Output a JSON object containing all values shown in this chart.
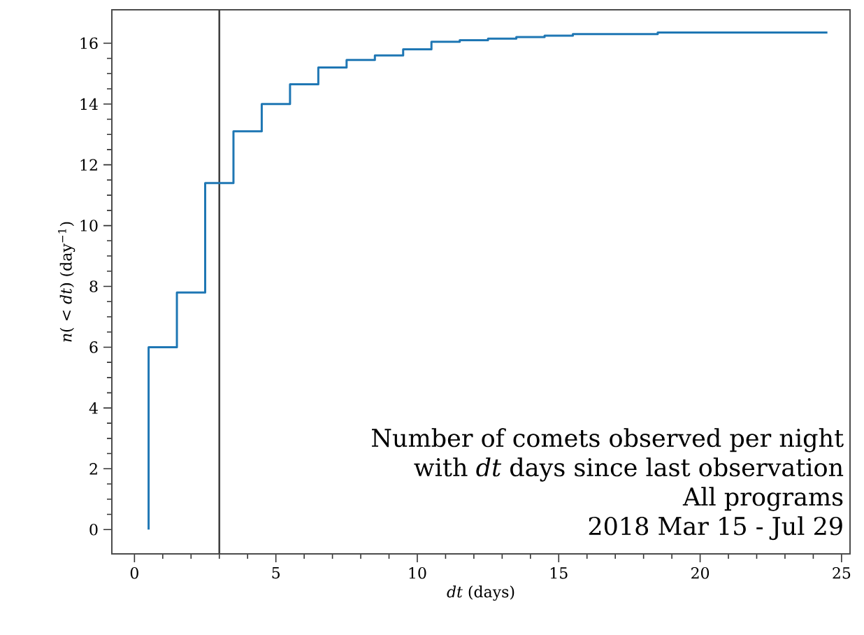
{
  "chart_data": {
    "type": "step",
    "xlabel": "*dt* (days)",
    "ylabel": "*n*( < *dt*) (day$^{−1}$)",
    "x": [
      0.5,
      0.5,
      1.5,
      2.5,
      3.5,
      4.5,
      5.5,
      6.5,
      7.5,
      8.5,
      9.5,
      10.5,
      11.5,
      12.5,
      13.5,
      14.5,
      15.5,
      18.5,
      24.5
    ],
    "series": [
      {
        "color": "#1f77b4",
        "values": [
          0,
          6.0,
          7.8,
          11.4,
          13.1,
          14.0,
          14.65,
          15.2,
          15.45,
          15.6,
          15.8,
          16.05,
          16.1,
          16.15,
          16.2,
          16.25,
          16.3,
          16.35,
          16.35
        ]
      }
    ],
    "xlim": [
      -0.8,
      25.3
    ],
    "ylim": [
      -0.8,
      17.1
    ],
    "xticks": [
      0,
      5,
      10,
      15,
      20,
      25
    ],
    "yticks": [
      0,
      2,
      4,
      6,
      8,
      10,
      12,
      14,
      16
    ],
    "ref_lines": [
      {
        "axis": "x",
        "value": 3,
        "color": "#404040"
      }
    ],
    "annotations": [
      "Number of comets observed per night",
      "with *dt* days since last observation",
      "All programs",
      "2018 Mar 15 - Jul 29"
    ],
    "grid": false
  }
}
